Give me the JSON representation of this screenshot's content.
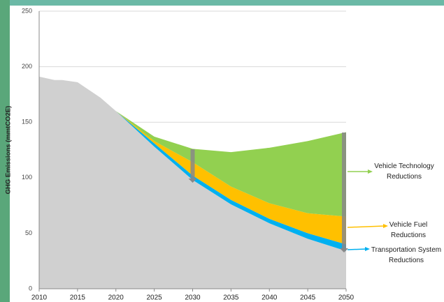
{
  "chart_data": {
    "type": "stacked-area",
    "y_label": "GHG Emissions (mmtCO2E)",
    "x": [
      2010,
      2012,
      2013,
      2015,
      2018,
      2020,
      2025,
      2030,
      2035,
      2040,
      2045,
      2050
    ],
    "series": [
      {
        "color": "#d0d0d0",
        "values": [
          191,
          188,
          188,
          186,
          172,
          160,
          128,
          98,
          76,
          59,
          45,
          34
        ]
      },
      {
        "name": "Transportation System Reductions",
        "color": "#00b0f0",
        "values": [
          0,
          0,
          0,
          0,
          0,
          0,
          3,
          4,
          4,
          4,
          5,
          6
        ]
      },
      {
        "name": "Vehicle Fuel Reductions",
        "color": "#ffc000",
        "values": [
          0,
          0,
          0,
          0,
          0,
          0,
          2,
          12,
          12,
          14,
          18,
          25
        ]
      },
      {
        "name": "Vehicle Technology Reductions",
        "color": "#92d050",
        "values": [
          0,
          0,
          0,
          0,
          0,
          0,
          4,
          12,
          31,
          50,
          65,
          76
        ]
      }
    ],
    "xlim": [
      2010,
      2050
    ],
    "xticks": [
      2010,
      2015,
      2020,
      2025,
      2030,
      2035,
      2040,
      2045,
      2050
    ],
    "ylim": [
      0,
      250
    ],
    "yticks": [
      0,
      50,
      100,
      150,
      200,
      250
    ],
    "grid": true
  }
}
